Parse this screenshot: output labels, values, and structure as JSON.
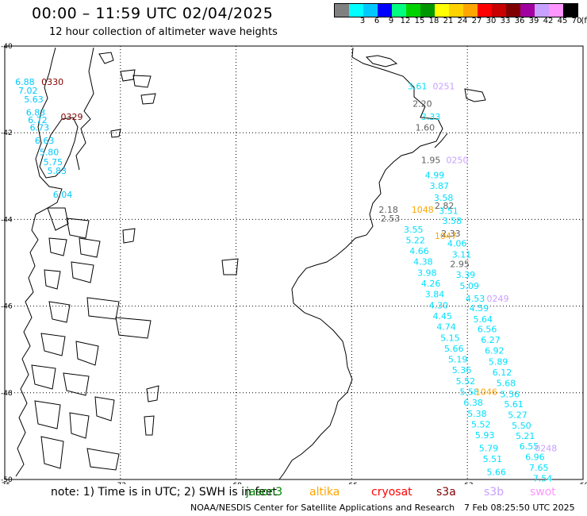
{
  "header": {
    "title": "00:00 – 11:59 UTC 02/04/2025",
    "subtitle": "12 hour collection of altimeter wave heights"
  },
  "legend": {
    "unit_label": "(ft)",
    "bins": [
      {
        "label": "",
        "color": "#808080"
      },
      {
        "label": "3",
        "color": "#00ffff"
      },
      {
        "label": "6",
        "color": "#00c8ff"
      },
      {
        "label": "9",
        "color": "#0000ff"
      },
      {
        "label": "12",
        "color": "#00ff80"
      },
      {
        "label": "15",
        "color": "#00d200"
      },
      {
        "label": "18",
        "color": "#009600"
      },
      {
        "label": "21",
        "color": "#ffff00"
      },
      {
        "label": "24",
        "color": "#ffd200"
      },
      {
        "label": "27",
        "color": "#ffa500"
      },
      {
        "label": "30",
        "color": "#ff0000"
      },
      {
        "label": "33",
        "color": "#c80000"
      },
      {
        "label": "36",
        "color": "#800000"
      },
      {
        "label": "39",
        "color": "#a000a0"
      },
      {
        "label": "42",
        "color": "#c8a0ff"
      },
      {
        "label": "45",
        "color": "#ff96ff"
      },
      {
        "label": "70",
        "color": "#000000"
      }
    ]
  },
  "axes": {
    "lon_labels": [
      "-75",
      "-72",
      "-69",
      "-66",
      "-63",
      "-60"
    ],
    "lat_labels": [
      "-40",
      "-42",
      "-44",
      "-46",
      "-48",
      "-50"
    ]
  },
  "tracks": [
    {
      "name": "aws-0330-0329",
      "color": "#00c8ff",
      "times": [
        {
          "t": "0330",
          "color": "#800000",
          "lon": -74.05,
          "lat": -40.9
        },
        {
          "t": "0329",
          "color": "#800000",
          "lon": -73.55,
          "lat": -41.7
        }
      ],
      "values": [
        {
          "v": "6.88",
          "lon": -74.73,
          "lat": -40.9
        },
        {
          "v": "7.02",
          "lon": -74.65,
          "lat": -41.1
        },
        {
          "v": "5.63",
          "lon": -74.5,
          "lat": -41.3
        },
        {
          "v": "6.83",
          "lon": -74.45,
          "lat": -41.6
        },
        {
          "v": "6.72",
          "lon": -74.4,
          "lat": -41.78
        },
        {
          "v": "6.73",
          "lon": -74.35,
          "lat": -41.95
        },
        {
          "v": "6.63",
          "lon": -74.22,
          "lat": -42.25
        },
        {
          "v": "5.80",
          "lon": -74.1,
          "lat": -42.52
        },
        {
          "v": "5.75",
          "lon": -74.0,
          "lat": -42.75
        },
        {
          "v": "5.83",
          "lon": -73.9,
          "lat": -42.95
        },
        {
          "v": "6.04",
          "lon": -73.75,
          "lat": -43.5
        }
      ]
    },
    {
      "name": "track-0251-0249",
      "color": "#00e0ff",
      "times": [
        {
          "t": "0251",
          "color": "#c8a0ff",
          "lon": -63.9,
          "lat": -41.0
        },
        {
          "t": "0250",
          "color": "#c8a0ff",
          "lon": -63.55,
          "lat": -42.7
        },
        {
          "t": "0249",
          "color": "#c8a0ff",
          "lon": -62.5,
          "lat": -45.9
        }
      ],
      "values": [
        {
          "v": "3.61",
          "lon": -64.55,
          "lat": -41.0
        },
        {
          "v": "3.33",
          "lon": -64.2,
          "lat": -41.7
        },
        {
          "v": "4.99",
          "lon": -64.1,
          "lat": -43.05
        },
        {
          "v": "3.87",
          "lon": -63.98,
          "lat": -43.3
        },
        {
          "v": "3.58",
          "lon": -63.87,
          "lat": -43.57
        },
        {
          "v": "3.51",
          "lon": -63.74,
          "lat": -43.87
        },
        {
          "v": "3.58",
          "lon": -63.65,
          "lat": -44.1
        },
        {
          "v": "4.06",
          "lon": -63.52,
          "lat": -44.62
        },
        {
          "v": "3.11",
          "lon": -63.4,
          "lat": -44.88
        },
        {
          "v": "3.39",
          "lon": -63.3,
          "lat": -45.35
        },
        {
          "v": "5.09",
          "lon": -63.2,
          "lat": -45.6
        },
        {
          "v": "4.53",
          "lon": -63.05,
          "lat": -45.9
        },
        {
          "v": "4.59",
          "lon": -62.95,
          "lat": -46.12
        },
        {
          "v": "5.64",
          "lon": -62.85,
          "lat": -46.37
        },
        {
          "v": "6.56",
          "lon": -62.74,
          "lat": -46.6
        },
        {
          "v": "6.27",
          "lon": -62.65,
          "lat": -46.85
        },
        {
          "v": "6.92",
          "lon": -62.55,
          "lat": -47.1
        },
        {
          "v": "5.89",
          "lon": -62.45,
          "lat": -47.35
        },
        {
          "v": "6.12",
          "lon": -62.35,
          "lat": -47.6
        },
        {
          "v": "5.68",
          "lon": -62.25,
          "lat": -47.85
        },
        {
          "v": "5.56",
          "lon": -62.15,
          "lat": -48.1
        },
        {
          "v": "5.61",
          "lon": -62.05,
          "lat": -48.33
        },
        {
          "v": "5.27",
          "lon": -61.95,
          "lat": -48.58
        },
        {
          "v": "5.50",
          "lon": -61.85,
          "lat": -48.83
        },
        {
          "v": "5.21",
          "lon": -61.75,
          "lat": -49.07
        },
        {
          "v": "6.55",
          "lon": -61.65,
          "lat": -49.3
        },
        {
          "v": "6.96",
          "lon": -61.5,
          "lat": -49.55
        },
        {
          "v": "7.65",
          "lon": -61.4,
          "lat": -49.8
        },
        {
          "v": "7.54",
          "lon": -61.3,
          "lat": -50.05
        }
      ]
    },
    {
      "name": "track-0248",
      "color": "#00e0ff",
      "times": [
        {
          "t": "0248",
          "color": "#c8a0ff",
          "lon": -61.25,
          "lat": -49.35
        }
      ],
      "values": []
    },
    {
      "name": "track-1048-1047",
      "color": "#00e0ff",
      "times": [
        {
          "t": "1048",
          "color": "#ffa500",
          "lon": -64.45,
          "lat": -43.85
        },
        {
          "t": "1047",
          "color": "#ffa500",
          "lon": -63.85,
          "lat": -44.45
        },
        {
          "t": "1046",
          "color": "#ffa500",
          "lon": -62.8,
          "lat": -48.05
        }
      ],
      "values": [
        {
          "v": "3.55",
          "lon": -64.65,
          "lat": -44.3
        },
        {
          "v": "5.22",
          "lon": -64.6,
          "lat": -44.55
        },
        {
          "v": "4.66",
          "lon": -64.5,
          "lat": -44.8
        },
        {
          "v": "4.38",
          "lon": -64.4,
          "lat": -45.05
        },
        {
          "v": "3.98",
          "lon": -64.3,
          "lat": -45.3
        },
        {
          "v": "4.26",
          "lon": -64.2,
          "lat": -45.55
        },
        {
          "v": "3.84",
          "lon": -64.1,
          "lat": -45.8
        },
        {
          "v": "4.30",
          "lon": -64.0,
          "lat": -46.05
        },
        {
          "v": "4.45",
          "lon": -63.9,
          "lat": -46.3
        },
        {
          "v": "4.74",
          "lon": -63.8,
          "lat": -46.55
        },
        {
          "v": "5.15",
          "lon": -63.7,
          "lat": -46.8
        },
        {
          "v": "5.66",
          "lon": -63.6,
          "lat": -47.05
        },
        {
          "v": "5.19",
          "lon": -63.5,
          "lat": -47.3
        },
        {
          "v": "5.36",
          "lon": -63.4,
          "lat": -47.55
        },
        {
          "v": "5.52",
          "lon": -63.3,
          "lat": -47.8
        },
        {
          "v": "5.58",
          "lon": -63.2,
          "lat": -48.05
        },
        {
          "v": "6.38",
          "lon": -63.1,
          "lat": -48.3
        },
        {
          "v": "5.38",
          "lon": -63.0,
          "lat": -48.55
        },
        {
          "v": "5.52",
          "lon": -62.9,
          "lat": -48.8
        },
        {
          "v": "5.93",
          "lon": -62.8,
          "lat": -49.05
        },
        {
          "v": "5.79",
          "lon": -62.7,
          "lat": -49.35
        },
        {
          "v": "5.51",
          "lon": -62.6,
          "lat": -49.6
        },
        {
          "v": "5.66",
          "lon": -62.5,
          "lat": -49.9
        }
      ]
    },
    {
      "name": "gray-track",
      "color": "#606060",
      "times": [],
      "values": [
        {
          "v": "2.20",
          "lon": -64.42,
          "lat": -41.4
        },
        {
          "v": "1.60",
          "lon": -64.35,
          "lat": -41.95
        },
        {
          "v": "1.95",
          "lon": -64.2,
          "lat": -42.7
        },
        {
          "v": "2.82",
          "lon": -63.85,
          "lat": -43.75
        },
        {
          "v": "2.18",
          "lon": -65.3,
          "lat": -43.85
        },
        {
          "v": "2.53",
          "lon": -65.25,
          "lat": -44.05
        },
        {
          "v": "2.33",
          "lon": -63.68,
          "lat": -44.4
        },
        {
          "v": "2.95",
          "lon": -63.45,
          "lat": -45.1
        }
      ]
    }
  ],
  "note": {
    "prefix": "note:  1) Time is in UTC; 2) SWH is in feet",
    "satellites": [
      {
        "name": "jason3",
        "color": "#008000"
      },
      {
        "name": "altika",
        "color": "#ffa500"
      },
      {
        "name": "cryosat",
        "color": "#ff0000"
      },
      {
        "name": "s3a",
        "color": "#800000"
      },
      {
        "name": "s3b",
        "color": "#c8a0ff"
      },
      {
        "name": "swot",
        "color": "#ff96ff"
      }
    ]
  },
  "footer": {
    "left": "NOAA/NESDIS Center for Satellite Applications and Research",
    "right": "7 Feb 08:25:50 UTC 2025"
  }
}
